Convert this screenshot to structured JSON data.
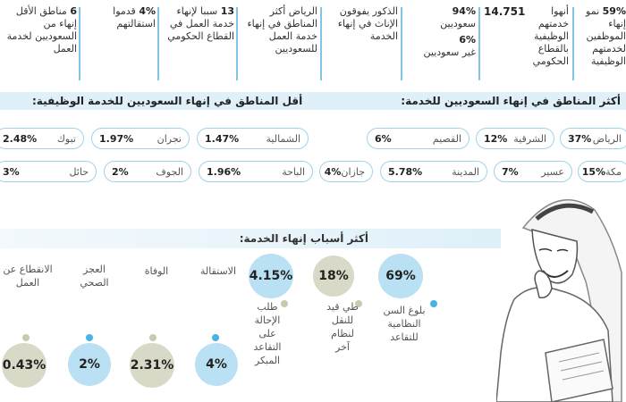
{
  "top_stats": [
    {
      "value": "59%",
      "text": "نمو إنهاء الموظفين لخدمتهم الوظيفية"
    },
    {
      "value": "14.751",
      "text": "أنهوا خدمتهم الوظيفية بالقطاع الحكومي"
    },
    {
      "value": "94%",
      "text": "سعوديين",
      "value2": "6%",
      "text2": "غير سعوديين"
    },
    {
      "value": "",
      "text": "الذكور يفوقون الإناث في إنهاء الخدمة"
    },
    {
      "value": "",
      "text": "الرياض أكثر المناطق في إنهاء خدمة العمل للسعوديين"
    },
    {
      "value": "13",
      "text": "سببا لإنهاء خدمة العمل في القطاع الحكومي"
    },
    {
      "value": "4%",
      "text": "قدموا استقالتهم"
    },
    {
      "value": "6",
      "text": "مناطق الأقل إنهاء من السعوديين لخدمة العمل"
    }
  ],
  "regions_header_top": "أكثر المناطق في إنهاء السعوديين للخدمة:",
  "regions_header_low": "أقل المناطق في إنهاء السعوديين للخدمة الوظيفية:",
  "regions_row1": [
    {
      "name": "الرياض",
      "value": "37%"
    },
    {
      "name": "الشرقية",
      "value": "12%"
    },
    {
      "name": "القصيم",
      "value": "6%"
    },
    {
      "name": "الشمالية",
      "value": "1.47%"
    },
    {
      "name": "نجران",
      "value": "1.97%"
    },
    {
      "name": "تبوك",
      "value": "2.48%"
    }
  ],
  "regions_row2": [
    {
      "name": "مكة",
      "value": "15%"
    },
    {
      "name": "عسير",
      "value": "7%"
    },
    {
      "name": "المدينة",
      "value": "5.78%"
    },
    {
      "name": "جازان",
      "value": "4%"
    },
    {
      "name": "الباحة",
      "value": "1.96%"
    },
    {
      "name": "الجوف",
      "value": "2%"
    },
    {
      "name": "حائل",
      "value": "3%"
    }
  ],
  "reasons_header": "أكثر أسباب إنهاء الخدمة:",
  "reasons_top": [
    {
      "value": "69%",
      "label": "بلوغ السن النظامية للتقاعد"
    },
    {
      "value": "18%",
      "label": "طي قيد للنقل لنظام آخر"
    },
    {
      "value": "4.15%",
      "label": "الاستقالة"
    }
  ],
  "reasons_labels_upper": [
    {
      "label": "الوفاة"
    },
    {
      "label": "العجز الصحي"
    },
    {
      "label": "الانقطاع عن العمل"
    }
  ],
  "reasons_bottom": [
    {
      "value": "4%",
      "label": "طلب الإحالة على التقاعد المبكر"
    },
    {
      "value": "2.31%"
    },
    {
      "value": "2%"
    },
    {
      "value": "0.43%"
    }
  ],
  "colors": {
    "accent": "#7fc6e8",
    "circle": "#b9e0f3",
    "dot_gray": "#c9c9b0",
    "dot_blue": "#49b3e3"
  }
}
